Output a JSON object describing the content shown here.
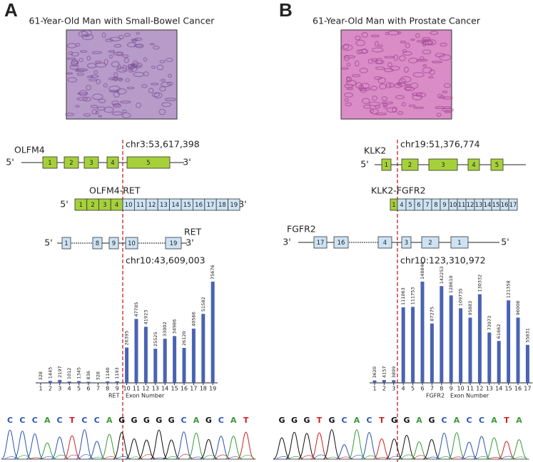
{
  "panels": [
    {
      "label": "A",
      "title": "61-Year-Old Man with Small-Bowel Cancer",
      "gene_5": {
        "name": "OLFM4",
        "coord": "chr3:53,617,398",
        "ends": [
          "5'",
          "3'"
        ],
        "exons": [
          "1",
          "2",
          "3",
          "4",
          "5"
        ]
      },
      "fusion": {
        "name": "OLFM4-RET",
        "ends": [
          "5'",
          "3'"
        ],
        "exons_5": [
          "1",
          "2",
          "3",
          "4"
        ],
        "exons_3": [
          "10",
          "11",
          "12",
          "13",
          "14",
          "15",
          "16",
          "17",
          "18",
          "19"
        ]
      },
      "gene_3": {
        "name": "RET",
        "coord": "chr10:43,609,003",
        "ends": [
          "5'",
          "3'"
        ],
        "exons": [
          "1",
          "8",
          "9",
          "10",
          "19"
        ]
      },
      "sequence": [
        "C",
        "C",
        "C",
        "A",
        "C",
        "T",
        "C",
        "C",
        "A",
        "G",
        "G",
        "G",
        "G",
        "G",
        "C",
        "A",
        "G",
        "C",
        "A",
        "T"
      ]
    },
    {
      "label": "B",
      "title": "61-Year-Old Man with Prostate Cancer",
      "gene_5": {
        "name": "KLK2",
        "coord": "chr19:51,376,774",
        "ends": [
          "5'"
        ],
        "exons": [
          "1",
          "2",
          "3",
          "4",
          "5"
        ]
      },
      "fusion": {
        "name": "KLK2-FGFR2",
        "exons_5": [
          "1"
        ],
        "exons_3": [
          "4",
          "5",
          "6",
          "7",
          "8",
          "9",
          "10",
          "11",
          "12",
          "13",
          "14",
          "15",
          "16",
          "17"
        ]
      },
      "gene_3": {
        "name": "FGFR2",
        "coord": "chr10:123,310,972",
        "ends": [
          "3'",
          "5'"
        ],
        "exons": [
          "17",
          "16",
          "4",
          "3",
          "2",
          "1"
        ]
      },
      "sequence": [
        "G",
        "G",
        "G",
        "T",
        "G",
        "C",
        "A",
        "C",
        "T",
        "G",
        "G",
        "A",
        "G",
        "C",
        "A",
        "C",
        "C",
        "A",
        "T",
        "A"
      ]
    }
  ],
  "chart_data": [
    {
      "type": "bar",
      "gene_label": "RET",
      "x_label": "Exon Number",
      "color": "#4a63b3",
      "categories": [
        "1",
        "2",
        "3",
        "4",
        "5",
        "6",
        "7",
        "8",
        "9",
        "10",
        "11",
        "12",
        "13",
        "14",
        "15",
        "16",
        "17",
        "18",
        "19"
      ],
      "values": [
        328,
        1445,
        2197,
        1012,
        1345,
        836,
        328,
        1140,
        1193,
        26395,
        47785,
        41923,
        25525,
        33002,
        34986,
        26120,
        40566,
        51582,
        75676
      ]
    },
    {
      "type": "bar",
      "gene_label": "FGFR2",
      "x_label": "Exon Number",
      "color": "#4a63b3",
      "categories": [
        "1",
        "2",
        "3",
        "4",
        "5",
        "6",
        "7",
        "8",
        "9",
        "10",
        "11",
        "12",
        "13",
        "14",
        "15",
        "16",
        "17"
      ],
      "values": [
        3620,
        4157,
        3899,
        111063,
        111753,
        148846,
        87275,
        142253,
        128610,
        109735,
        95883,
        130332,
        73973,
        61662,
        121358,
        96008,
        55831
      ]
    }
  ]
}
